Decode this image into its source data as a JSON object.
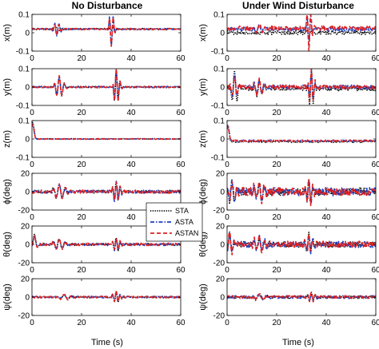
{
  "chart_data": {
    "type": "line",
    "columns": [
      {
        "title": "No Disturbance",
        "xlabel": "Time (s)"
      },
      {
        "title": "Under Wind Disturbance",
        "xlabel": "Time (s)"
      }
    ],
    "xlim": [
      0,
      60
    ],
    "xticks": [
      0,
      20,
      40,
      60
    ],
    "legend": {
      "placement": "between panels, rows 4-5",
      "entries": [
        {
          "name": "STA",
          "color": "#000000",
          "style": "dotted"
        },
        {
          "name": "ASTA",
          "color": "#1f3fbf",
          "style": "dashdot"
        },
        {
          "name": "ASTAN",
          "color": "#e02020",
          "style": "dashed"
        }
      ]
    },
    "rows": [
      {
        "ylabel": "x(m)",
        "ylim": [
          -0.1,
          0.1
        ],
        "yticks": [
          -0.1,
          0,
          0.1
        ],
        "cols": [
          {
            "events": [
              [
                10,
                0.01,
                -0.04,
                -0.03,
                1.2,
                7
              ],
              [
                32,
                -0.01,
                -0.1,
                -0.09,
                0.9,
                8
              ]
            ],
            "noise": [
              0.004,
              0.004,
              0.004
            ],
            "offset": [
              0.02,
              0.02,
              0.02
            ]
          },
          {
            "events": [
              [
                13,
                0.0,
                0.02,
                0.02,
                1.5,
                5
              ],
              [
                33,
                -0.01,
                -0.1,
                -0.12,
                0.9,
                8
              ]
            ],
            "noise": [
              0.01,
              0.012,
              0.012
            ],
            "offset": [
              0.0,
              0.02,
              0.025
            ]
          }
        ]
      },
      {
        "ylabel": "y(m)",
        "ylim": [
          -0.1,
          0.1
        ],
        "yticks": [
          -0.1,
          0,
          0.1
        ],
        "cols": [
          {
            "events": [
              [
                11,
                0.06,
                0.05,
                0.06,
                1.4,
                6
              ],
              [
                34,
                0.1,
                0.09,
                0.1,
                1.0,
                8
              ]
            ],
            "noise": [
              0.004,
              0.004,
              0.004
            ],
            "offset": [
              0.0,
              0.0,
              0.0
            ]
          },
          {
            "events": [
              [
                3,
                0.09,
                0.07,
                0.06,
                1.2,
                6
              ],
              [
                13,
                0.04,
                0.04,
                0.05,
                1.6,
                6
              ],
              [
                34,
                0.11,
                0.09,
                0.1,
                1.0,
                8
              ]
            ],
            "noise": [
              0.01,
              0.012,
              0.012
            ],
            "offset": [
              -0.01,
              0.0,
              0.0
            ]
          }
        ]
      },
      {
        "ylabel": "z(m)",
        "ylim": [
          -0.1,
          0.1
        ],
        "yticks": [
          -0.1,
          0,
          0.1
        ],
        "cols": [
          {
            "events": [
              [
                0.3,
                0.09,
                0.08,
                0.08,
                0.6,
                2
              ]
            ],
            "noise": [
              0.002,
              0.002,
              0.002
            ],
            "offset": [
              0.0,
              0.0,
              0.0
            ]
          },
          {
            "events": [
              [
                0.3,
                0.09,
                0.08,
                0.08,
                0.6,
                2
              ]
            ],
            "noise": [
              0.004,
              0.005,
              0.005
            ],
            "offset": [
              -0.015,
              -0.01,
              -0.01
            ]
          }
        ]
      },
      {
        "ylabel": "ϕ(deg)",
        "ylim": [
          -20,
          20
        ],
        "yticks": [
          -20,
          0,
          20
        ],
        "cols": [
          {
            "events": [
              [
                11,
                8,
                7,
                8,
                2.0,
                5
              ],
              [
                34,
                10,
                12,
                11,
                1.3,
                8
              ]
            ],
            "noise": [
              1.5,
              1.8,
              1.8
            ],
            "offset": [
              0,
              0,
              0
            ]
          },
          {
            "events": [
              [
                2,
                14,
                12,
                12,
                1.3,
                6
              ],
              [
                13,
                8,
                9,
                10,
                2.0,
                6
              ],
              [
                33,
                12,
                14,
                13,
                1.3,
                8
              ]
            ],
            "noise": [
              4,
              4.5,
              4.5
            ],
            "offset": [
              0,
              0,
              0
            ]
          }
        ]
      },
      {
        "ylabel": "θ(deg)",
        "ylim": [
          -20,
          20
        ],
        "yticks": [
          -20,
          0,
          20
        ],
        "cols": [
          {
            "events": [
              [
                1,
                10,
                9,
                9,
                1.0,
                4
              ],
              [
                11,
                6,
                5,
                6,
                2.0,
                5
              ],
              [
                34,
                8,
                7,
                7,
                1.2,
                8
              ]
            ],
            "noise": [
              1.2,
              1.4,
              1.4
            ],
            "offset": [
              0,
              0,
              0
            ]
          },
          {
            "events": [
              [
                1,
                12,
                11,
                12,
                1.2,
                6
              ],
              [
                13,
                6,
                7,
                8,
                2.0,
                6
              ],
              [
                33,
                12,
                10,
                10,
                1.2,
                8
              ]
            ],
            "noise": [
              3,
              3.5,
              3.5
            ],
            "offset": [
              0,
              0,
              0
            ]
          }
        ]
      },
      {
        "ylabel": "ψ(deg)",
        "ylim": [
          -20,
          20
        ],
        "yticks": [
          -20,
          0,
          20
        ],
        "cols": [
          {
            "events": [
              [
                13,
                3,
                2,
                3,
                2.0,
                4
              ],
              [
                34,
                6,
                5,
                6,
                1.3,
                8
              ]
            ],
            "noise": [
              0.8,
              1.0,
              1.0
            ],
            "offset": [
              0,
              0,
              0
            ]
          },
          {
            "events": [
              [
                13,
                3,
                2,
                3,
                2.0,
                4
              ],
              [
                34,
                5,
                5,
                5,
                1.3,
                8
              ]
            ],
            "noise": [
              1.4,
              1.6,
              1.6
            ],
            "offset": [
              0,
              0,
              0
            ]
          }
        ]
      }
    ]
  }
}
